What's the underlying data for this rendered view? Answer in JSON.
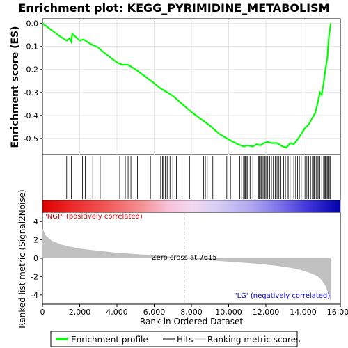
{
  "chart_data": {
    "type": "line",
    "title": "Enrichment plot: KEGG_PYRIMIDINE_METABOLISM",
    "panels": {
      "enrichment": {
        "ylabel": "Enrichment score (ES)",
        "ylim": [
          -0.57,
          0.02
        ],
        "yticks": [
          0.0,
          -0.1,
          -0.2,
          -0.3,
          -0.4,
          -0.5
        ],
        "ytick_labels": [
          "0.0",
          "-0.1",
          "-0.2",
          "-0.3",
          "-0.4",
          "-0.5"
        ],
        "series": [
          {
            "name": "Enrichment profile",
            "color": "#00ff00",
            "x": [
              0,
              500,
              1000,
              1300,
              1450,
              1550,
              1600,
              1800,
              2000,
              2200,
              2400,
              2600,
              3000,
              3200,
              3600,
              4000,
              4300,
              4600,
              5000,
              5500,
              6000,
              6300,
              6600,
              7000,
              7500,
              8000,
              8500,
              9000,
              9500,
              10000,
              10500,
              10800,
              11000,
              11300,
              11500,
              11700,
              11900,
              12100,
              12300,
              12600,
              12900,
              13100,
              13300,
              13500,
              13700,
              13900,
              14100,
              14300,
              14500,
              14650,
              14800,
              14900,
              15000,
              15100,
              15200,
              15300,
              15350,
              15400,
              15450,
              15480
            ],
            "y": [
              0.0,
              -0.03,
              -0.06,
              -0.075,
              -0.065,
              -0.08,
              -0.045,
              -0.06,
              -0.075,
              -0.07,
              -0.08,
              -0.09,
              -0.105,
              -0.12,
              -0.145,
              -0.17,
              -0.18,
              -0.18,
              -0.2,
              -0.23,
              -0.26,
              -0.28,
              -0.295,
              -0.315,
              -0.35,
              -0.385,
              -0.415,
              -0.445,
              -0.48,
              -0.505,
              -0.525,
              -0.535,
              -0.53,
              -0.535,
              -0.525,
              -0.53,
              -0.52,
              -0.515,
              -0.52,
              -0.52,
              -0.535,
              -0.54,
              -0.52,
              -0.525,
              -0.505,
              -0.48,
              -0.455,
              -0.44,
              -0.41,
              -0.39,
              -0.34,
              -0.3,
              -0.31,
              -0.26,
              -0.2,
              -0.15,
              -0.09,
              -0.05,
              -0.02,
              0.0
            ]
          }
        ]
      },
      "hits": {
        "label": "Hits",
        "positions": [
          1300,
          1480,
          1550,
          2150,
          2300,
          2700,
          3100,
          4150,
          4450,
          4600,
          4750,
          5100,
          5800,
          6350,
          6450,
          6500,
          6600,
          6700,
          6850,
          7000,
          7200,
          7500,
          7900,
          8650,
          8750,
          8850,
          9150,
          9900,
          10100,
          10600,
          10700,
          10800,
          10850,
          10900,
          10950,
          11000,
          11050,
          11150,
          11200,
          11300,
          11600,
          11650,
          11700,
          11750,
          11800,
          11850,
          11900,
          11950,
          12000,
          12050,
          12100,
          12200,
          12300,
          12400,
          12500,
          12600,
          12700,
          12800,
          12950,
          13050,
          13150,
          13200,
          13300,
          13400,
          13500,
          13600,
          13700,
          13800,
          13900,
          14000,
          14100,
          14200,
          14300,
          14400,
          14500,
          14550,
          14600,
          14700,
          14800,
          14850,
          14900,
          15000,
          15100,
          15150,
          15200,
          15250,
          15300,
          15350,
          15400,
          15450
        ]
      },
      "ranked_metric": {
        "ylabel": "Ranked list metric (Signal2Noise)",
        "ylim": [
          -5,
          5
        ],
        "yticks": [
          4,
          2,
          0,
          -2,
          -4
        ],
        "ytick_labels": [
          "4",
          "2",
          "0",
          "-2",
          "-4"
        ],
        "series": [
          {
            "name": "Ranking metric scores",
            "color": "#c0c0c0",
            "x": [
              0,
              200,
              500,
              1000,
              1500,
              2000,
              3000,
              4000,
              5000,
              6000,
              7000,
              7615,
              8500,
              9500,
              10500,
              11500,
              12500,
              13500,
              14000,
              14500,
              14800,
              15000,
              15200,
              15350,
              15450,
              15480
            ],
            "y": [
              3.2,
              2.4,
              1.9,
              1.5,
              1.25,
              1.05,
              0.8,
              0.6,
              0.45,
              0.3,
              0.15,
              0.0,
              -0.15,
              -0.3,
              -0.45,
              -0.6,
              -0.8,
              -1.1,
              -1.35,
              -1.7,
              -2.0,
              -2.4,
              -3.0,
              -3.8,
              -4.5,
              -4.8
            ]
          }
        ],
        "zero_cross_label": "Zero cross at 7615",
        "zero_cross": 7615,
        "pos_label": "'NGP' (positively correlated)",
        "neg_label": "'LG' (negatively correlated)"
      }
    },
    "xlabel": "Rank in Ordered Dataset",
    "xlim": [
      0,
      16000
    ],
    "xticks": [
      0,
      2000,
      4000,
      6000,
      8000,
      10000,
      12000,
      14000,
      16000
    ],
    "xtick_labels": [
      "0",
      "2,000",
      "4,000",
      "6,000",
      "8,000",
      "10,000",
      "12,000",
      "14,000",
      "16,000"
    ],
    "n_ranked": 15480,
    "legend": {
      "placement": "bottom",
      "entries": [
        {
          "label": "Enrichment profile",
          "color": "#00ff00"
        },
        {
          "label": "Hits",
          "color": "#000000"
        },
        {
          "label": "Ranking metric scores",
          "color": "#c0c0c0"
        }
      ]
    }
  }
}
